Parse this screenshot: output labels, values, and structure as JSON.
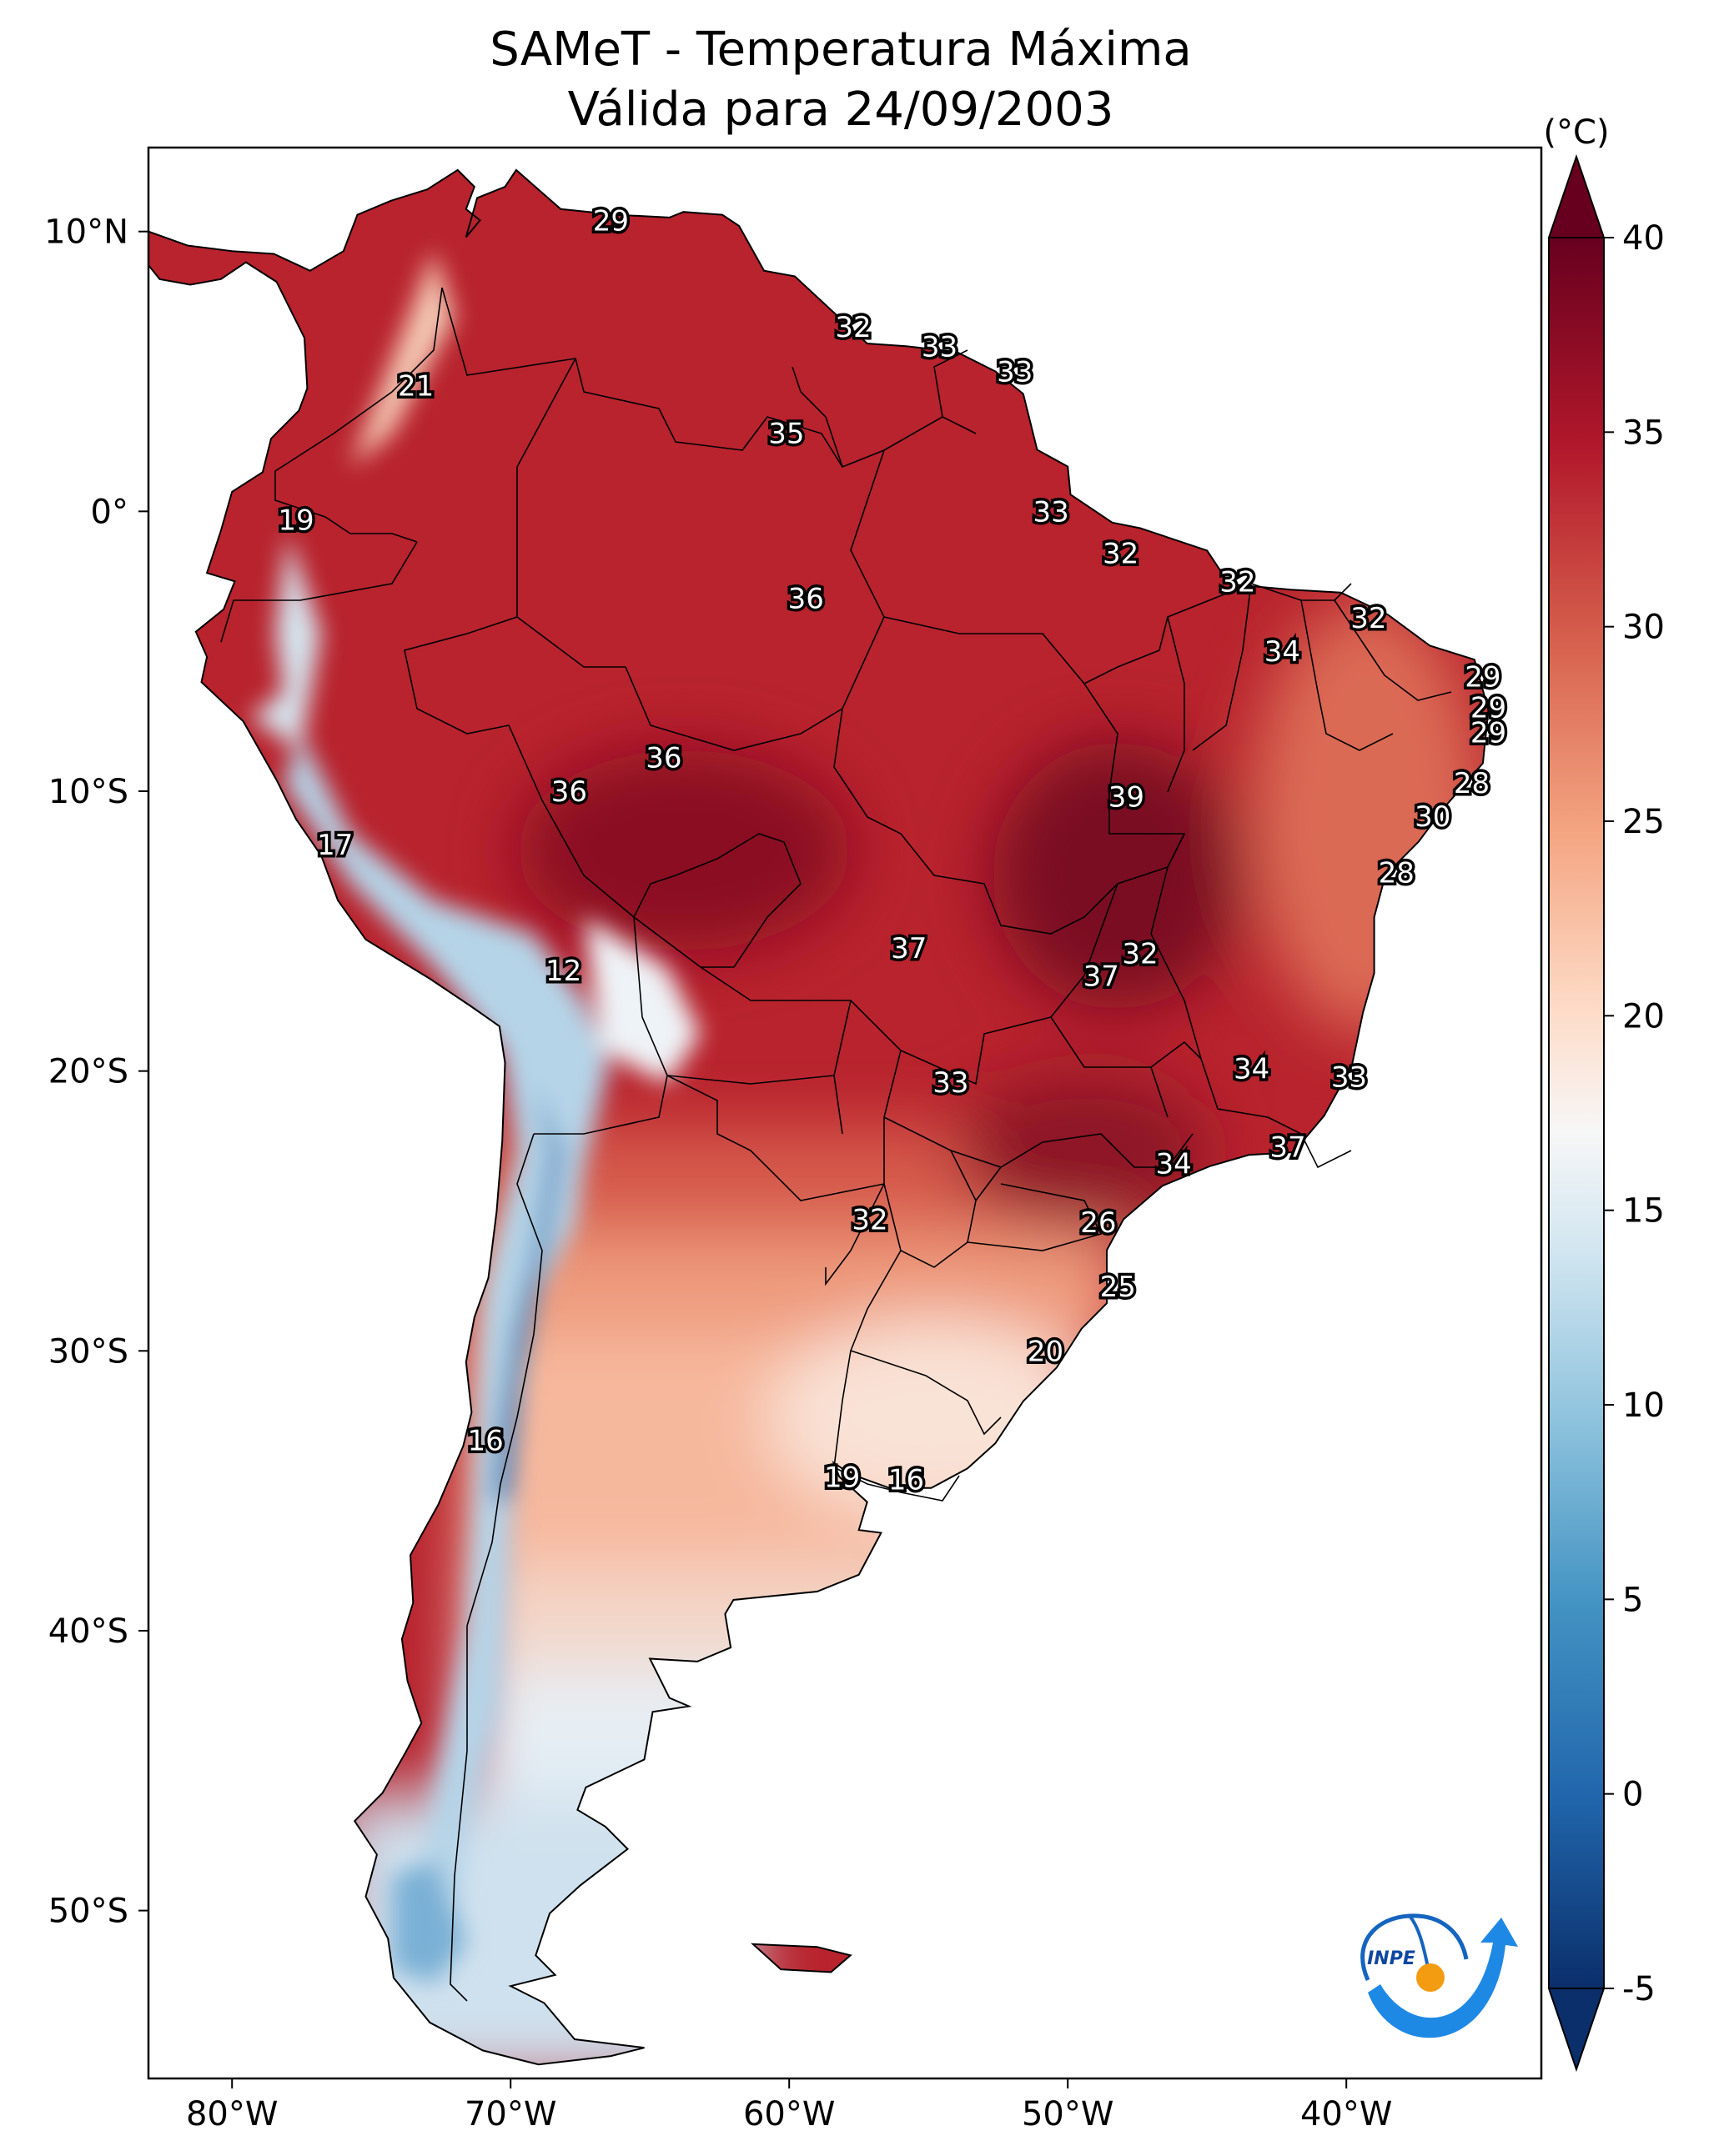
{
  "title": {
    "line1": "SAMeT - Temperatura Máxima",
    "line2": "Válida para 24/09/2003"
  },
  "map": {
    "lon_range": [
      -83,
      -33
    ],
    "lat_range": [
      -56,
      13
    ],
    "lon_ticks": [
      {
        "value": -80,
        "label": "80°W"
      },
      {
        "value": -70,
        "label": "70°W"
      },
      {
        "value": -60,
        "label": "60°W"
      },
      {
        "value": -50,
        "label": "50°W"
      },
      {
        "value": -40,
        "label": "40°W"
      }
    ],
    "lat_ticks": [
      {
        "value": 10,
        "label": "10°N"
      },
      {
        "value": 0,
        "label": "0°"
      },
      {
        "value": -10,
        "label": "10°S"
      },
      {
        "value": -20,
        "label": "20°S"
      },
      {
        "value": -30,
        "label": "30°S"
      },
      {
        "value": -40,
        "label": "40°S"
      },
      {
        "value": -50,
        "label": "50°S"
      }
    ],
    "value_labels": [
      {
        "text": "29",
        "lon": -66.4,
        "lat": 10.4
      },
      {
        "text": "21",
        "lon": -73.4,
        "lat": 4.5
      },
      {
        "text": "32",
        "lon": -57.7,
        "lat": 6.6
      },
      {
        "text": "33",
        "lon": -54.6,
        "lat": 5.9
      },
      {
        "text": "33",
        "lon": -51.9,
        "lat": 5.0
      },
      {
        "text": "35",
        "lon": -60.1,
        "lat": 2.8
      },
      {
        "text": "19",
        "lon": -77.7,
        "lat": -0.3
      },
      {
        "text": "33",
        "lon": -50.6,
        "lat": 0.0
      },
      {
        "text": "32",
        "lon": -48.1,
        "lat": -1.5
      },
      {
        "text": "36",
        "lon": -59.4,
        "lat": -3.1
      },
      {
        "text": "32",
        "lon": -43.9,
        "lat": -2.5
      },
      {
        "text": "32",
        "lon": -39.2,
        "lat": -3.8
      },
      {
        "text": "34",
        "lon": -42.3,
        "lat": -5.0
      },
      {
        "text": "29",
        "lon": -35.1,
        "lat": -5.9
      },
      {
        "text": "29",
        "lon": -34.9,
        "lat": -7.0
      },
      {
        "text": "29",
        "lon": -34.9,
        "lat": -7.9
      },
      {
        "text": "28",
        "lon": -35.5,
        "lat": -9.7
      },
      {
        "text": "30",
        "lon": -36.9,
        "lat": -10.9
      },
      {
        "text": "36",
        "lon": -64.5,
        "lat": -8.8
      },
      {
        "text": "36",
        "lon": -67.9,
        "lat": -10.0
      },
      {
        "text": "39",
        "lon": -47.9,
        "lat": -10.2
      },
      {
        "text": "17",
        "lon": -76.3,
        "lat": -11.9
      },
      {
        "text": "28",
        "lon": -38.2,
        "lat": -12.9
      },
      {
        "text": "37",
        "lon": -55.7,
        "lat": -15.6
      },
      {
        "text": "32",
        "lon": -47.4,
        "lat": -15.8
      },
      {
        "text": "37",
        "lon": -48.8,
        "lat": -16.6
      },
      {
        "text": "12",
        "lon": -68.1,
        "lat": -16.4
      },
      {
        "text": "34",
        "lon": -43.4,
        "lat": -19.9
      },
      {
        "text": "33",
        "lon": -39.9,
        "lat": -20.2
      },
      {
        "text": "33",
        "lon": -54.2,
        "lat": -20.4
      },
      {
        "text": "37",
        "lon": -42.1,
        "lat": -22.7
      },
      {
        "text": "34",
        "lon": -46.2,
        "lat": -23.3
      },
      {
        "text": "32",
        "lon": -57.1,
        "lat": -25.3
      },
      {
        "text": "26",
        "lon": -48.9,
        "lat": -25.4
      },
      {
        "text": "25",
        "lon": -48.2,
        "lat": -27.7
      },
      {
        "text": "20",
        "lon": -50.8,
        "lat": -30.0
      },
      {
        "text": "16",
        "lon": -70.9,
        "lat": -33.2
      },
      {
        "text": "19",
        "lon": -58.1,
        "lat": -34.5
      },
      {
        "text": "16",
        "lon": -55.8,
        "lat": -34.6
      }
    ]
  },
  "colorbar": {
    "unit_label": "(°C)",
    "min": -5,
    "max": 40,
    "ticks": [
      {
        "value": -5,
        "label": "-5"
      },
      {
        "value": 0,
        "label": "0"
      },
      {
        "value": 5,
        "label": "5"
      },
      {
        "value": 10,
        "label": "10"
      },
      {
        "value": 15,
        "label": "15"
      },
      {
        "value": 20,
        "label": "20"
      },
      {
        "value": 25,
        "label": "25"
      },
      {
        "value": 30,
        "label": "30"
      },
      {
        "value": 35,
        "label": "35"
      },
      {
        "value": 40,
        "label": "40"
      }
    ],
    "extend": "both",
    "colors": [
      "#0b2f6b",
      "#2166ac",
      "#4393c3",
      "#92c5de",
      "#d1e5f0",
      "#f7f7f7",
      "#fddbc7",
      "#f4a582",
      "#d6604d",
      "#b2182b",
      "#67001f"
    ]
  },
  "logo": {
    "text": "INPE"
  }
}
